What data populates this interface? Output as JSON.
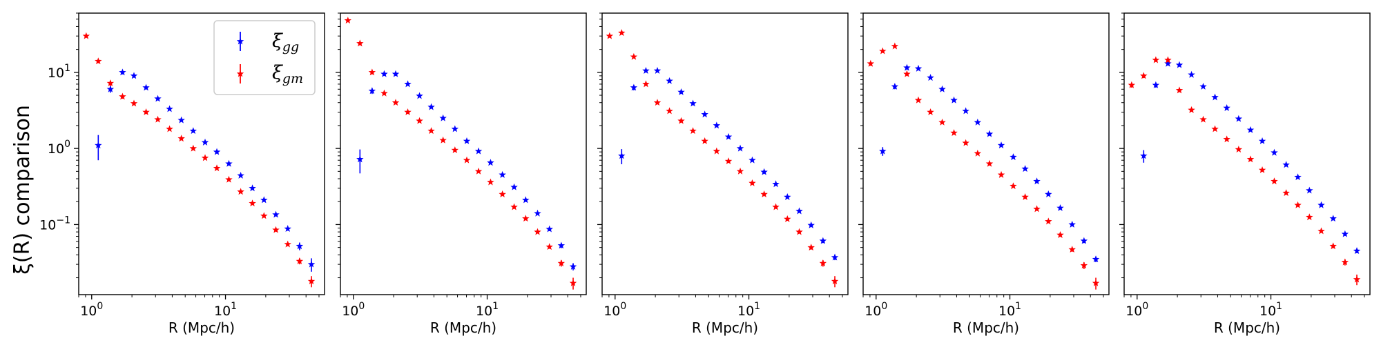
{
  "figure": {
    "ylabel_main": "ξ(R) comparison",
    "xlabel": "R  (Mpc/h)"
  },
  "legend": {
    "entries": [
      {
        "symbol": "ξ",
        "sub": "gg",
        "color": "#0000ff"
      },
      {
        "symbol": "ξ",
        "sub": "gm",
        "color": "#ff0000"
      }
    ]
  },
  "colors": {
    "gg": "#0000ff",
    "gm": "#ff0000"
  },
  "chart_data": [
    {
      "type": "scatter",
      "xscale": "log",
      "yscale": "log",
      "xlim": [
        0.8,
        55
      ],
      "ylim": [
        0.012,
        60
      ],
      "xlabel": "R  (Mpc/h)",
      "xticks": [
        {
          "value": 1,
          "base": "10",
          "exp": "0"
        },
        {
          "value": 10,
          "base": "10",
          "exp": "1"
        }
      ],
      "yticks": [
        {
          "value": 0.1,
          "base": "10",
          "exp": "−1"
        },
        {
          "value": 1,
          "base": "10",
          "exp": "0"
        },
        {
          "value": 10,
          "base": "10",
          "exp": "1"
        }
      ],
      "series": [
        {
          "name": "ξgg",
          "key": "gg",
          "x": [
            1.12,
            1.38,
            1.7,
            2.07,
            2.55,
            3.12,
            3.82,
            4.68,
            5.74,
            7.04,
            8.62,
            10.6,
            13.0,
            15.9,
            19.4,
            23.8,
            29.2,
            35.8,
            43.9
          ],
          "y": [
            1.1,
            6.0,
            10.0,
            9.0,
            6.3,
            4.5,
            3.3,
            2.35,
            1.7,
            1.2,
            0.9,
            0.63,
            0.44,
            0.3,
            0.21,
            0.135,
            0.088,
            0.052,
            0.03
          ],
          "err": [
            0.4,
            0.6,
            0.6,
            0.5,
            0.3,
            0.2,
            0.15,
            0.1,
            0.07,
            0.05,
            0.03,
            0.02,
            0.015,
            0.01,
            0.008,
            0.006,
            0.005,
            0.006,
            0.006
          ]
        },
        {
          "name": "ξgm",
          "key": "gm",
          "x": [
            0.91,
            1.12,
            1.38,
            1.7,
            2.07,
            2.55,
            3.12,
            3.82,
            4.68,
            5.74,
            7.04,
            8.62,
            10.6,
            13.0,
            15.9,
            19.4,
            23.8,
            29.2,
            35.8,
            43.9
          ],
          "y": [
            30.0,
            14.0,
            7.2,
            4.8,
            3.9,
            3.0,
            2.4,
            1.8,
            1.35,
            1.0,
            0.75,
            0.55,
            0.39,
            0.27,
            0.19,
            0.13,
            0.085,
            0.055,
            0.033,
            0.018
          ],
          "err": [
            1.0,
            0.8,
            0.6,
            0.3,
            0.2,
            0.15,
            0.1,
            0.08,
            0.06,
            0.04,
            0.03,
            0.02,
            0.015,
            0.01,
            0.008,
            0.006,
            0.004,
            0.003,
            0.003,
            0.003
          ]
        }
      ]
    },
    {
      "type": "scatter",
      "xscale": "log",
      "yscale": "log",
      "xlim": [
        0.8,
        55
      ],
      "ylim": [
        0.012,
        60
      ],
      "xlabel": "R  (Mpc/h)",
      "xticks": [
        {
          "value": 1,
          "base": "10",
          "exp": "0"
        },
        {
          "value": 10,
          "base": "10",
          "exp": "1"
        }
      ],
      "series": [
        {
          "name": "ξgg",
          "key": "gg",
          "x": [
            1.12,
            1.38,
            1.7,
            2.07,
            2.55,
            3.12,
            3.82,
            4.68,
            5.74,
            7.04,
            8.62,
            10.6,
            13.0,
            15.9,
            19.4,
            23.8,
            29.2,
            35.8,
            43.9
          ],
          "y": [
            0.72,
            5.7,
            9.5,
            9.5,
            7.0,
            4.9,
            3.5,
            2.5,
            1.8,
            1.25,
            0.92,
            0.65,
            0.45,
            0.31,
            0.21,
            0.14,
            0.087,
            0.053,
            0.028
          ],
          "err": [
            0.25,
            0.5,
            0.5,
            0.5,
            0.3,
            0.2,
            0.15,
            0.1,
            0.07,
            0.05,
            0.03,
            0.02,
            0.015,
            0.01,
            0.008,
            0.006,
            0.005,
            0.004,
            0.003
          ]
        },
        {
          "name": "ξgm",
          "key": "gm",
          "x": [
            0.91,
            1.12,
            1.38,
            1.7,
            2.07,
            2.55,
            3.12,
            3.82,
            4.68,
            5.74,
            7.04,
            8.62,
            10.6,
            13.0,
            15.9,
            19.4,
            23.8,
            29.2,
            35.8,
            43.9
          ],
          "y": [
            48.0,
            24.0,
            10.0,
            5.3,
            4.0,
            3.0,
            2.3,
            1.7,
            1.28,
            0.95,
            0.7,
            0.5,
            0.36,
            0.25,
            0.17,
            0.12,
            0.08,
            0.051,
            0.031,
            0.017
          ],
          "err": [
            1.5,
            1.0,
            0.6,
            0.3,
            0.2,
            0.15,
            0.1,
            0.08,
            0.06,
            0.04,
            0.03,
            0.02,
            0.015,
            0.01,
            0.008,
            0.006,
            0.004,
            0.003,
            0.003,
            0.003
          ]
        }
      ]
    },
    {
      "type": "scatter",
      "xscale": "log",
      "yscale": "log",
      "xlim": [
        0.8,
        55
      ],
      "ylim": [
        0.012,
        60
      ],
      "xlabel": "R  (Mpc/h)",
      "xticks": [
        {
          "value": 1,
          "base": "10",
          "exp": "0"
        },
        {
          "value": 10,
          "base": "10",
          "exp": "1"
        }
      ],
      "series": [
        {
          "name": "ξgg",
          "key": "gg",
          "x": [
            1.12,
            1.38,
            1.7,
            2.07,
            2.55,
            3.12,
            3.82,
            4.68,
            5.74,
            7.04,
            8.62,
            10.6,
            13.0,
            15.9,
            19.4,
            23.8,
            29.2,
            35.8,
            43.9
          ],
          "y": [
            0.8,
            6.3,
            10.5,
            10.5,
            7.7,
            5.5,
            3.9,
            2.8,
            2.0,
            1.42,
            1.0,
            0.7,
            0.49,
            0.34,
            0.23,
            0.15,
            0.098,
            0.061,
            0.037
          ],
          "err": [
            0.18,
            0.5,
            0.5,
            0.5,
            0.3,
            0.2,
            0.15,
            0.1,
            0.07,
            0.05,
            0.03,
            0.02,
            0.015,
            0.01,
            0.008,
            0.006,
            0.005,
            0.004,
            0.003
          ]
        },
        {
          "name": "ξgm",
          "key": "gm",
          "x": [
            0.91,
            1.12,
            1.38,
            1.7,
            2.07,
            2.55,
            3.12,
            3.82,
            4.68,
            5.74,
            7.04,
            8.62,
            10.6,
            13.0,
            15.9,
            19.4,
            23.8,
            29.2,
            35.8,
            43.9
          ],
          "y": [
            30.0,
            33.0,
            16.0,
            7.0,
            4.0,
            3.1,
            2.3,
            1.7,
            1.25,
            0.92,
            0.68,
            0.5,
            0.35,
            0.25,
            0.17,
            0.118,
            0.08,
            0.05,
            0.031,
            0.018
          ],
          "err": [
            1.0,
            1.0,
            0.6,
            0.3,
            0.2,
            0.15,
            0.1,
            0.08,
            0.06,
            0.04,
            0.03,
            0.02,
            0.015,
            0.01,
            0.008,
            0.006,
            0.004,
            0.003,
            0.003,
            0.003
          ]
        }
      ]
    },
    {
      "type": "scatter",
      "xscale": "log",
      "yscale": "log",
      "xlim": [
        0.8,
        55
      ],
      "ylim": [
        0.012,
        60
      ],
      "xlabel": "R  (Mpc/h)",
      "xticks": [
        {
          "value": 1,
          "base": "10",
          "exp": "0"
        },
        {
          "value": 10,
          "base": "10",
          "exp": "1"
        }
      ],
      "series": [
        {
          "name": "ξgg",
          "key": "gg",
          "x": [
            1.12,
            1.38,
            1.7,
            2.07,
            2.55,
            3.12,
            3.82,
            4.68,
            5.74,
            7.04,
            8.62,
            10.6,
            13.0,
            15.9,
            19.4,
            23.8,
            29.2,
            35.8,
            43.9
          ],
          "y": [
            0.92,
            6.5,
            11.5,
            11.2,
            8.5,
            6.0,
            4.3,
            3.1,
            2.2,
            1.55,
            1.1,
            0.77,
            0.54,
            0.37,
            0.25,
            0.165,
            0.1,
            0.061,
            0.035
          ],
          "err": [
            0.12,
            0.5,
            0.5,
            0.5,
            0.3,
            0.2,
            0.15,
            0.1,
            0.07,
            0.05,
            0.03,
            0.02,
            0.015,
            0.01,
            0.008,
            0.006,
            0.005,
            0.004,
            0.003
          ]
        },
        {
          "name": "ξgm",
          "key": "gm",
          "x": [
            0.91,
            1.12,
            1.38,
            1.7,
            2.07,
            2.55,
            3.12,
            3.82,
            4.68,
            5.74,
            7.04,
            8.62,
            10.6,
            13.0,
            15.9,
            19.4,
            23.8,
            29.2,
            35.8,
            43.9
          ],
          "y": [
            13.0,
            19.0,
            22.0,
            9.5,
            4.3,
            3.0,
            2.2,
            1.6,
            1.18,
            0.86,
            0.63,
            0.45,
            0.32,
            0.23,
            0.16,
            0.11,
            0.073,
            0.047,
            0.029,
            0.017
          ],
          "err": [
            0.8,
            0.8,
            0.8,
            0.4,
            0.2,
            0.15,
            0.1,
            0.08,
            0.06,
            0.04,
            0.03,
            0.02,
            0.015,
            0.01,
            0.008,
            0.006,
            0.004,
            0.003,
            0.003,
            0.003
          ]
        }
      ]
    },
    {
      "type": "scatter",
      "xscale": "log",
      "yscale": "log",
      "xlim": [
        0.8,
        55
      ],
      "ylim": [
        0.012,
        60
      ],
      "xlabel": "R  (Mpc/h)",
      "xticks": [
        {
          "value": 1,
          "base": "10",
          "exp": "0"
        },
        {
          "value": 10,
          "base": "10",
          "exp": "1"
        }
      ],
      "series": [
        {
          "name": "ξgg",
          "key": "gg",
          "x": [
            1.12,
            1.38,
            1.7,
            2.07,
            2.55,
            3.12,
            3.82,
            4.68,
            5.74,
            7.04,
            8.62,
            10.6,
            13.0,
            15.9,
            19.4,
            23.8,
            29.2,
            35.8,
            43.9
          ],
          "y": [
            0.8,
            6.8,
            13.0,
            12.5,
            9.3,
            6.5,
            4.7,
            3.4,
            2.45,
            1.75,
            1.25,
            0.88,
            0.61,
            0.42,
            0.28,
            0.18,
            0.12,
            0.075,
            0.045
          ],
          "err": [
            0.15,
            0.5,
            0.6,
            0.5,
            0.3,
            0.2,
            0.15,
            0.1,
            0.07,
            0.05,
            0.03,
            0.02,
            0.015,
            0.01,
            0.008,
            0.006,
            0.005,
            0.004,
            0.003
          ]
        },
        {
          "name": "ξgm",
          "key": "gm",
          "x": [
            0.91,
            1.12,
            1.38,
            1.7,
            2.07,
            2.55,
            3.12,
            3.82,
            4.68,
            5.74,
            7.04,
            8.62,
            10.6,
            13.0,
            15.9,
            19.4,
            23.8,
            29.2,
            35.8,
            43.9
          ],
          "y": [
            6.8,
            9.0,
            14.5,
            14.5,
            5.8,
            3.2,
            2.4,
            1.8,
            1.32,
            0.97,
            0.72,
            0.52,
            0.37,
            0.26,
            0.18,
            0.125,
            0.082,
            0.052,
            0.032,
            0.019
          ],
          "err": [
            0.5,
            0.6,
            0.8,
            0.8,
            0.3,
            0.15,
            0.1,
            0.08,
            0.06,
            0.04,
            0.03,
            0.02,
            0.015,
            0.01,
            0.008,
            0.006,
            0.004,
            0.003,
            0.003,
            0.003
          ]
        }
      ]
    }
  ]
}
